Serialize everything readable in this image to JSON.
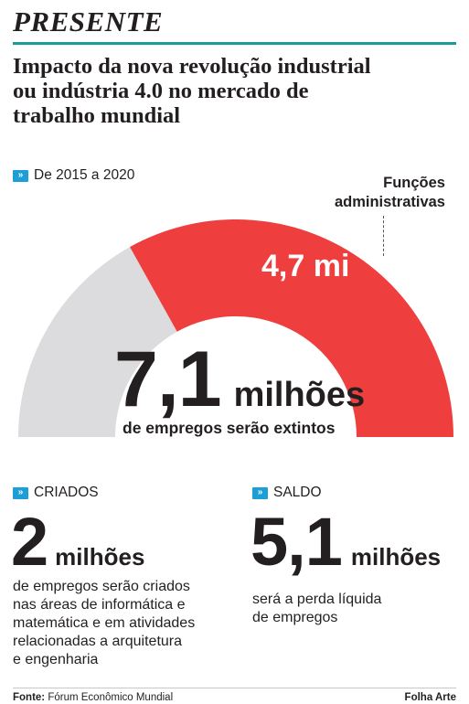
{
  "section": "PRESENTE",
  "headline": [
    "Impacto da nova revolução industrial",
    "ou indústria 4.0 no mercado de",
    "trabalho mundial"
  ],
  "period": "De 2015 a 2020",
  "chart_data": {
    "type": "pie",
    "subtype": "semicircle-gauge",
    "total_label": "7,1 milhões",
    "total_value": 7.1,
    "unit": "milhões",
    "total_caption": "de empregos serão extintos",
    "segments": [
      {
        "label": "Funções administrativas",
        "value": 4.7,
        "value_label": "4,7 mi",
        "color": "#ee3e3e"
      },
      {
        "value": 2.4,
        "color": "#dcdcde"
      }
    ],
    "segment_order": [
      "gray-left",
      "red-right"
    ]
  },
  "criados": {
    "kicker": "CRIADOS",
    "number": "2",
    "unit": "milhões",
    "text": [
      "de empregos serão criados",
      "nas áreas de informática e",
      "matemática e em atividades",
      "relacionadas a arquitetura",
      "e engenharia"
    ]
  },
  "saldo": {
    "kicker": "SALDO",
    "number": "5,1",
    "unit": "milhões",
    "text": [
      "será a perda líquida",
      "de empregos"
    ]
  },
  "footer": {
    "source_label": "Fonte:",
    "source": "Fórum Econômico Mundial",
    "credit": "Folha Arte"
  },
  "colors": {
    "accent_rule": "#1a9c9a",
    "kicker_icon": "#1b9fd6",
    "red": "#ee3e3e",
    "gray": "#dcdcde"
  },
  "icons": {
    "kicker": "double-chevron-right-icon"
  }
}
